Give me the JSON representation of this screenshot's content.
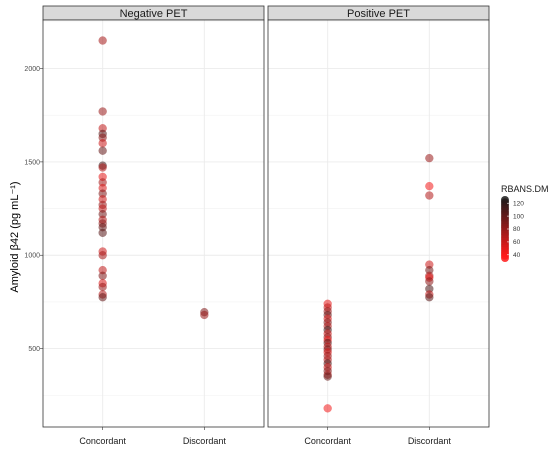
{
  "chart_data": {
    "type": "scatter",
    "ylabel": "Amyloid β42 (pg mL⁻¹)",
    "ylim": [
      80,
      2260
    ],
    "y_ticks": [
      500,
      1000,
      1500,
      2000
    ],
    "categories": [
      "Concordant",
      "Discordant"
    ],
    "grid": true,
    "legend": {
      "title": "RBANS.DM",
      "placement": "right",
      "ticks": [
        120,
        100,
        80,
        60,
        40
      ],
      "range": [
        35,
        125
      ],
      "low_color": "#ff1a1a",
      "high_color": "#1a1a1a"
    },
    "panels": [
      {
        "title": "Negative PET",
        "series": [
          {
            "category": "Concordant",
            "points": [
              {
                "y": 2150,
                "c": 70
              },
              {
                "y": 1770,
                "c": 75
              },
              {
                "y": 1680,
                "c": 60
              },
              {
                "y": 1650,
                "c": 100
              },
              {
                "y": 1630,
                "c": 80
              },
              {
                "y": 1600,
                "c": 55
              },
              {
                "y": 1560,
                "c": 95
              },
              {
                "y": 1480,
                "c": 110
              },
              {
                "y": 1470,
                "c": 65
              },
              {
                "y": 1420,
                "c": 45
              },
              {
                "y": 1390,
                "c": 70
              },
              {
                "y": 1360,
                "c": 50
              },
              {
                "y": 1330,
                "c": 85
              },
              {
                "y": 1300,
                "c": 55
              },
              {
                "y": 1270,
                "c": 75
              },
              {
                "y": 1250,
                "c": 60
              },
              {
                "y": 1220,
                "c": 90
              },
              {
                "y": 1190,
                "c": 65
              },
              {
                "y": 1170,
                "c": 80
              },
              {
                "y": 1150,
                "c": 95
              },
              {
                "y": 1120,
                "c": 100
              },
              {
                "y": 1020,
                "c": 55
              },
              {
                "y": 1000,
                "c": 70
              },
              {
                "y": 920,
                "c": 60
              },
              {
                "y": 890,
                "c": 85
              },
              {
                "y": 850,
                "c": 50
              },
              {
                "y": 830,
                "c": 75
              },
              {
                "y": 790,
                "c": 65
              },
              {
                "y": 775,
                "c": 95
              }
            ]
          },
          {
            "category": "Discordant",
            "points": [
              {
                "y": 695,
                "c": 85
              },
              {
                "y": 680,
                "c": 75
              }
            ]
          }
        ]
      },
      {
        "title": "Positive PET",
        "series": [
          {
            "category": "Concordant",
            "points": [
              {
                "y": 740,
                "c": 45
              },
              {
                "y": 720,
                "c": 60
              },
              {
                "y": 700,
                "c": 75
              },
              {
                "y": 680,
                "c": 95
              },
              {
                "y": 660,
                "c": 50
              },
              {
                "y": 640,
                "c": 85
              },
              {
                "y": 620,
                "c": 65
              },
              {
                "y": 600,
                "c": 110
              },
              {
                "y": 580,
                "c": 55
              },
              {
                "y": 560,
                "c": 80
              },
              {
                "y": 545,
                "c": 40
              },
              {
                "y": 530,
                "c": 100
              },
              {
                "y": 510,
                "c": 60
              },
              {
                "y": 495,
                "c": 90
              },
              {
                "y": 480,
                "c": 50
              },
              {
                "y": 460,
                "c": 75
              },
              {
                "y": 440,
                "c": 65
              },
              {
                "y": 420,
                "c": 105
              },
              {
                "y": 400,
                "c": 55
              },
              {
                "y": 380,
                "c": 85
              },
              {
                "y": 360,
                "c": 70
              },
              {
                "y": 350,
                "c": 95
              },
              {
                "y": 180,
                "c": 40
              }
            ]
          },
          {
            "category": "Discordant",
            "points": [
              {
                "y": 1520,
                "c": 75
              },
              {
                "y": 1370,
                "c": 40
              },
              {
                "y": 1320,
                "c": 65
              },
              {
                "y": 950,
                "c": 55
              },
              {
                "y": 920,
                "c": 90
              },
              {
                "y": 890,
                "c": 70
              },
              {
                "y": 880,
                "c": 45
              },
              {
                "y": 860,
                "c": 80
              },
              {
                "y": 820,
                "c": 105
              },
              {
                "y": 790,
                "c": 60
              },
              {
                "y": 775,
                "c": 100
              }
            ]
          }
        ]
      }
    ]
  }
}
